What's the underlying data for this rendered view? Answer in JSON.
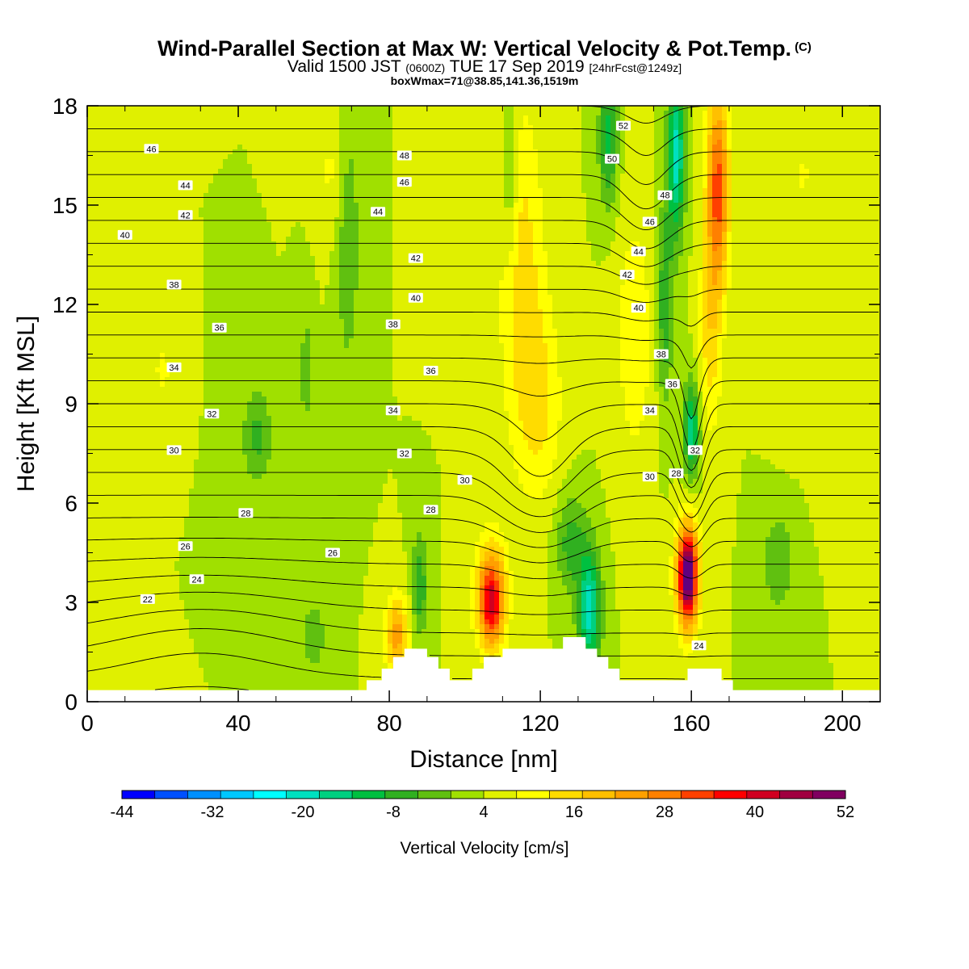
{
  "header": {
    "title": "Wind-Parallel Section at Max W: Vertical Velocity & Pot.Temp.",
    "title_mark": "(C)",
    "valid_prefix": "Valid 1500 JST",
    "valid_z": "(0600Z)",
    "valid_date": "TUE 17 Sep 2019",
    "forecast": "[24hrFcst@1249z]",
    "box_info": "boxWmax=71@38.85,141.36,1519m"
  },
  "chart_data": {
    "type": "contour",
    "xlabel": "Distance [nm]",
    "ylabel": "Height [Kft MSL]",
    "xlim": [
      0,
      210
    ],
    "ylim": [
      0,
      18
    ],
    "x_ticks": [
      0,
      40,
      80,
      120,
      160,
      200
    ],
    "y_ticks": [
      0,
      3,
      6,
      9,
      12,
      15,
      18
    ],
    "colorbar": {
      "label": "Vertical Velocity [cm/s]",
      "min": -44,
      "max": 52,
      "step": 4,
      "tick_labels": [
        -44,
        -32,
        -20,
        -8,
        4,
        16,
        28,
        40,
        52
      ],
      "colors": [
        "#0000ff",
        "#0050ff",
        "#0090ff",
        "#00c8ff",
        "#00ffff",
        "#00e0c0",
        "#00d080",
        "#00c040",
        "#30b020",
        "#60c010",
        "#a0e000",
        "#e0f000",
        "#ffff00",
        "#ffdc00",
        "#ffc000",
        "#ffa000",
        "#ff8000",
        "#ff4000",
        "#ff0000",
        "#d00020",
        "#a00040",
        "#800060",
        "#600080"
      ]
    },
    "background_w": 0,
    "w_features": [
      {
        "x": 107,
        "z": 3.2,
        "sx": 4,
        "sz": 1.6,
        "w": 26
      },
      {
        "x": 107,
        "z": 2.8,
        "sx": 2.5,
        "sz": 1.0,
        "w": 10
      },
      {
        "x": 159,
        "z": 3.8,
        "sx": 3,
        "sz": 1.6,
        "w": 40
      },
      {
        "x": 159,
        "z": 3.8,
        "sx": 1.5,
        "sz": 0.9,
        "w": 14
      },
      {
        "x": 82,
        "z": 2.0,
        "sx": 3,
        "sz": 1.2,
        "w": 18
      },
      {
        "x": 88,
        "z": 3.5,
        "sx": 2,
        "sz": 1.5,
        "w": -12
      },
      {
        "x": 133,
        "z": 2.8,
        "sx": 3,
        "sz": 1.8,
        "w": -22
      },
      {
        "x": 128,
        "z": 4.8,
        "sx": 4,
        "sz": 1.5,
        "w": -10
      },
      {
        "x": 115,
        "z": 13,
        "sx": 6,
        "sz": 5,
        "w": 10
      },
      {
        "x": 120,
        "z": 9,
        "sx": 6,
        "sz": 3,
        "w": 8
      },
      {
        "x": 145,
        "z": 11,
        "sx": 5,
        "sz": 4,
        "w": 7
      },
      {
        "x": 167,
        "z": 15.5,
        "sx": 3,
        "sz": 3,
        "w": 26
      },
      {
        "x": 165,
        "z": 11,
        "sx": 3,
        "sz": 3,
        "w": 10
      },
      {
        "x": 156,
        "z": 16.5,
        "sx": 2.2,
        "sz": 2.5,
        "w": -22
      },
      {
        "x": 160,
        "z": 8.2,
        "sx": 2.2,
        "sz": 1.5,
        "w": -18
      },
      {
        "x": 153,
        "z": 12,
        "sx": 2,
        "sz": 3,
        "w": -12
      },
      {
        "x": 138,
        "z": 17,
        "sx": 2.5,
        "sz": 2,
        "w": -14
      },
      {
        "x": 112,
        "z": 16,
        "sx": 2,
        "sz": 3,
        "w": -8
      },
      {
        "x": 69,
        "z": 14,
        "sx": 3,
        "sz": 4,
        "w": -8
      },
      {
        "x": 58,
        "z": 10,
        "sx": 2,
        "sz": 2,
        "w": -6
      },
      {
        "x": 45,
        "z": 8,
        "sx": 4,
        "sz": 1.5,
        "w": -9
      },
      {
        "x": 20,
        "z": 10,
        "sx": 3,
        "sz": 1,
        "w": 5
      },
      {
        "x": 65,
        "z": 16,
        "sx": 4,
        "sz": 2,
        "w": 5
      },
      {
        "x": 92,
        "z": 14,
        "sx": 3,
        "sz": 2,
        "w": 4
      },
      {
        "x": 183,
        "z": 4.2,
        "sx": 4,
        "sz": 1.5,
        "w": -8
      },
      {
        "x": 190,
        "z": 16,
        "sx": 4,
        "sz": 2,
        "w": 4
      },
      {
        "x": 200,
        "z": 9,
        "sx": 6,
        "sz": 2,
        "w": 4
      },
      {
        "x": 60,
        "z": 2,
        "sx": 3,
        "sz": 1,
        "w": -8
      },
      {
        "x": 185,
        "z": 12,
        "sx": 4,
        "sz": 3,
        "w": 4
      }
    ],
    "theta_contours": {
      "min": 20,
      "max": 54,
      "step": 1,
      "surface_value": 22,
      "top_value": 48
    },
    "theta_labels": [
      {
        "x": 17,
        "z": 16.7,
        "value": "46"
      },
      {
        "x": 26,
        "z": 15.6,
        "value": "44"
      },
      {
        "x": 26,
        "z": 14.7,
        "value": "42"
      },
      {
        "x": 10,
        "z": 14.1,
        "value": "40"
      },
      {
        "x": 23,
        "z": 12.6,
        "value": "38"
      },
      {
        "x": 35,
        "z": 11.3,
        "value": "36"
      },
      {
        "x": 23,
        "z": 10.1,
        "value": "34"
      },
      {
        "x": 33,
        "z": 8.7,
        "value": "32"
      },
      {
        "x": 23,
        "z": 7.6,
        "value": "30"
      },
      {
        "x": 42,
        "z": 5.7,
        "value": "28"
      },
      {
        "x": 26,
        "z": 4.7,
        "value": "26"
      },
      {
        "x": 65,
        "z": 4.5,
        "value": "26"
      },
      {
        "x": 29,
        "z": 3.7,
        "value": "24"
      },
      {
        "x": 16,
        "z": 3.1,
        "value": "22"
      },
      {
        "x": 84,
        "z": 16.5,
        "value": "48"
      },
      {
        "x": 84,
        "z": 15.7,
        "value": "46"
      },
      {
        "x": 77,
        "z": 14.8,
        "value": "44"
      },
      {
        "x": 87,
        "z": 13.4,
        "value": "42"
      },
      {
        "x": 87,
        "z": 12.2,
        "value": "40"
      },
      {
        "x": 81,
        "z": 11.4,
        "value": "38"
      },
      {
        "x": 91,
        "z": 10.0,
        "value": "36"
      },
      {
        "x": 81,
        "z": 8.8,
        "value": "34"
      },
      {
        "x": 84,
        "z": 7.5,
        "value": "32"
      },
      {
        "x": 100,
        "z": 6.7,
        "value": "30"
      },
      {
        "x": 91,
        "z": 5.8,
        "value": "28"
      },
      {
        "x": 142,
        "z": 17.4,
        "value": "52"
      },
      {
        "x": 139,
        "z": 16.4,
        "value": "50"
      },
      {
        "x": 153,
        "z": 15.3,
        "value": "48"
      },
      {
        "x": 149,
        "z": 14.5,
        "value": "46"
      },
      {
        "x": 146,
        "z": 13.6,
        "value": "44"
      },
      {
        "x": 143,
        "z": 12.9,
        "value": "42"
      },
      {
        "x": 146,
        "z": 11.9,
        "value": "40"
      },
      {
        "x": 152,
        "z": 10.5,
        "value": "38"
      },
      {
        "x": 155,
        "z": 9.6,
        "value": "36"
      },
      {
        "x": 149,
        "z": 8.8,
        "value": "34"
      },
      {
        "x": 161,
        "z": 7.6,
        "value": "32"
      },
      {
        "x": 156,
        "z": 6.9,
        "value": "28"
      },
      {
        "x": 149,
        "z": 6.8,
        "value": "30"
      },
      {
        "x": 162,
        "z": 1.7,
        "value": "24"
      }
    ],
    "terrain": [
      [
        0,
        0.35
      ],
      [
        74,
        0.35
      ],
      [
        74,
        0.65
      ],
      [
        78,
        0.65
      ],
      [
        78,
        1.0
      ],
      [
        81,
        1.0
      ],
      [
        81,
        1.35
      ],
      [
        84,
        1.35
      ],
      [
        84,
        1.6
      ],
      [
        90,
        1.6
      ],
      [
        90,
        1.35
      ],
      [
        93,
        1.35
      ],
      [
        93,
        1.0
      ],
      [
        96,
        1.0
      ],
      [
        96,
        0.65
      ],
      [
        102,
        0.65
      ],
      [
        102,
        1.0
      ],
      [
        105,
        1.0
      ],
      [
        105,
        1.35
      ],
      [
        110,
        1.35
      ],
      [
        110,
        1.6
      ],
      [
        126,
        1.6
      ],
      [
        126,
        1.95
      ],
      [
        132,
        1.95
      ],
      [
        132,
        1.6
      ],
      [
        135,
        1.6
      ],
      [
        135,
        1.35
      ],
      [
        138,
        1.35
      ],
      [
        138,
        1.0
      ],
      [
        141,
        1.0
      ],
      [
        141,
        0.65
      ],
      [
        159,
        0.65
      ],
      [
        159,
        1.0
      ],
      [
        168,
        1.0
      ],
      [
        168,
        0.65
      ],
      [
        171,
        0.65
      ],
      [
        171,
        0.35
      ],
      [
        210,
        0.35
      ]
    ]
  }
}
